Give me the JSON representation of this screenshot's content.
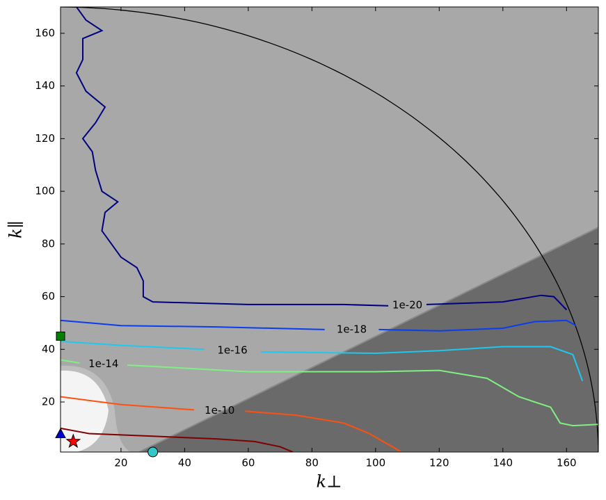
{
  "chart_data": {
    "type": "contour",
    "x_label": "k⊥",
    "y_label": "k∥",
    "xlim": [
      1,
      170
    ],
    "ylim": [
      1,
      170
    ],
    "xticks": [
      20,
      40,
      60,
      80,
      100,
      120,
      140,
      160
    ],
    "yticks": [
      20,
      40,
      60,
      80,
      100,
      120,
      140,
      160
    ],
    "series": [
      {
        "name": "1e-20",
        "color": "#000080",
        "x": [
          6,
          9,
          14,
          8,
          8,
          6,
          9,
          15,
          12,
          8,
          11,
          12,
          14,
          19,
          15,
          14,
          17,
          20,
          25,
          27,
          27,
          30,
          60,
          90,
          104,
          null,
          116,
          140,
          152,
          156,
          160
        ],
        "y": [
          170,
          165,
          161,
          158,
          150,
          145,
          138,
          132,
          126,
          120,
          115,
          108,
          100,
          96,
          92,
          85,
          80,
          75,
          71,
          66,
          60,
          58,
          57,
          57,
          56.5,
          null,
          57,
          58,
          60.5,
          60,
          55
        ]
      },
      {
        "name": "1e-18",
        "color": "#0a3cf0",
        "x": [
          1,
          20,
          50,
          84,
          null,
          101,
          120,
          140,
          150,
          160,
          163
        ],
        "y": [
          51,
          49,
          48.5,
          47.5,
          null,
          47.5,
          47,
          48,
          50.5,
          51,
          49
        ]
      },
      {
        "name": "1e-16",
        "color": "#1ec8f0",
        "x": [
          1,
          20,
          46,
          null,
          64,
          100,
          120,
          140,
          155,
          162,
          165
        ],
        "y": [
          43,
          41.5,
          40,
          null,
          39,
          38.5,
          39.5,
          41,
          41,
          38,
          28
        ]
      },
      {
        "name": "1e-14",
        "color": "#80f080",
        "x": [
          1,
          7,
          null,
          22,
          60,
          100,
          120,
          135,
          145,
          155,
          158,
          162,
          170
        ],
        "y": [
          36,
          34.8,
          null,
          34,
          31.5,
          31.5,
          32,
          29,
          22,
          18,
          12,
          11,
          11.5
        ]
      },
      {
        "name": "1e-10",
        "color": "#ff5010",
        "x": [
          1,
          20,
          43,
          null,
          59,
          75,
          90,
          98,
          106,
          108
        ],
        "y": [
          22,
          19,
          17,
          null,
          16.5,
          15,
          12,
          8,
          2.5,
          1
        ]
      },
      {
        "color": "#800000",
        "x": [
          1,
          10,
          30,
          50,
          62,
          70,
          74
        ],
        "y": [
          10,
          8,
          7,
          6,
          5,
          3,
          1
        ]
      }
    ],
    "markers": [
      {
        "shape": "square",
        "color": "#008000",
        "x": 1,
        "y": 45
      },
      {
        "shape": "triangle",
        "color": "#0000cc",
        "x": 1,
        "y": 8
      },
      {
        "shape": "star",
        "color": "#ff0000",
        "x": 5,
        "y": 5
      },
      {
        "shape": "circle",
        "color": "#30c8c8",
        "x": 30,
        "y": 1
      }
    ]
  }
}
